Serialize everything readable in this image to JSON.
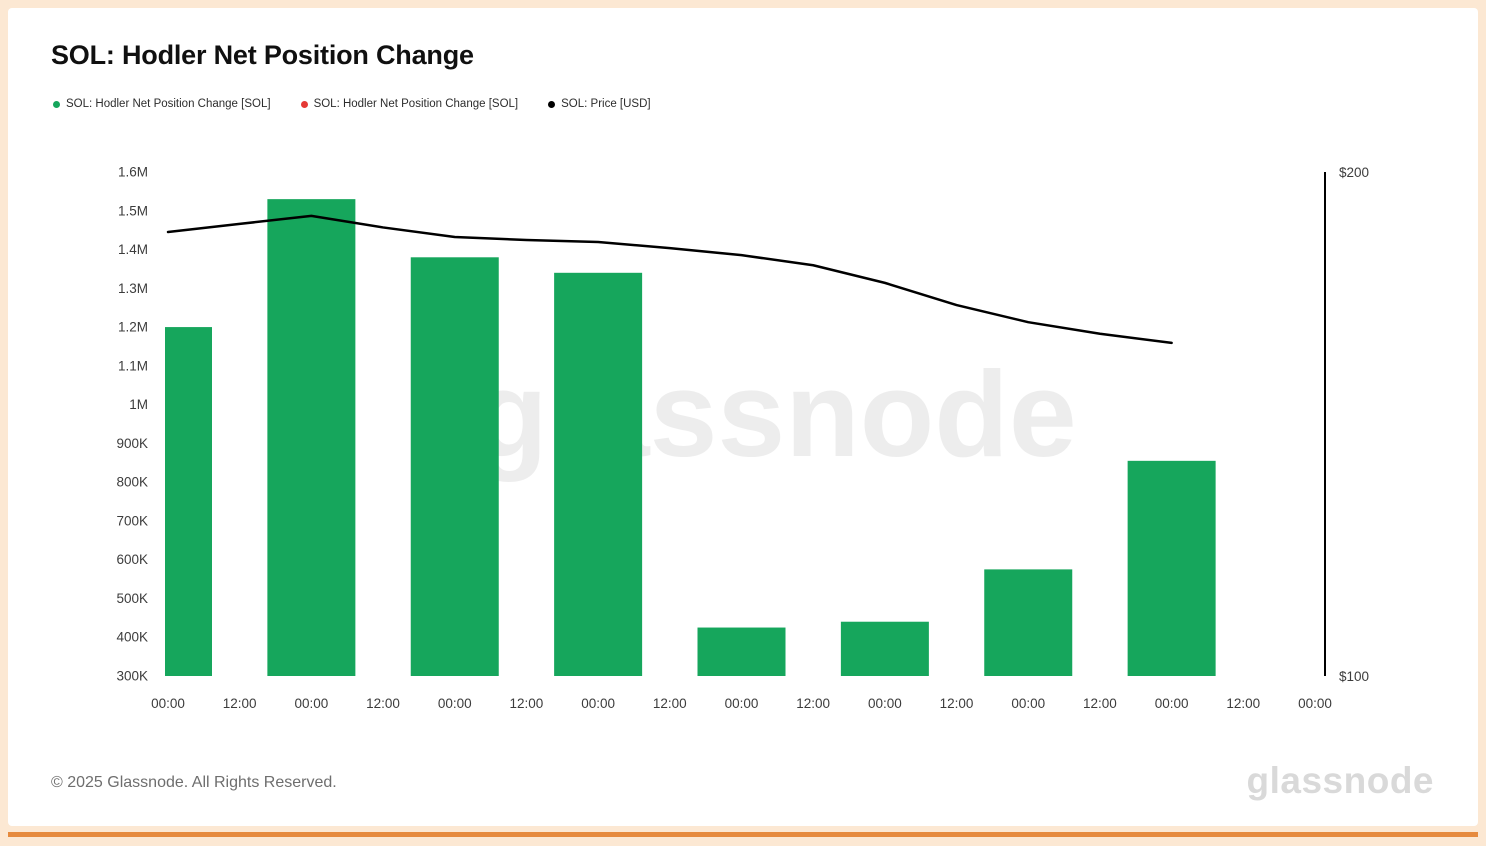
{
  "header": {
    "title": "SOL: Hodler Net Position Change"
  },
  "legend": {
    "items": [
      {
        "label": "SOL: Hodler Net Position Change [SOL]",
        "color": "#16a65c"
      },
      {
        "label": "SOL: Hodler Net Position Change [SOL]",
        "color": "#e53935"
      },
      {
        "label": "SOL: Price [USD]",
        "color": "#000000"
      }
    ]
  },
  "footer": {
    "copyright": "© 2025 Glassnode. All Rights Reserved.",
    "logo": "glassnode"
  },
  "chart_data": {
    "type": "combo",
    "title": "SOL: Hodler Net Position Change",
    "watermark": "glassnode",
    "x_tick_labels": [
      "00:00",
      "12:00",
      "00:00",
      "12:00",
      "00:00",
      "12:00",
      "00:00",
      "12:00",
      "00:00",
      "12:00",
      "00:00",
      "12:00",
      "00:00",
      "12:00",
      "00:00",
      "12:00",
      "00:00"
    ],
    "left_axis": {
      "ticks": [
        "1.6M",
        "1.5M",
        "1.4M",
        "1.3M",
        "1.2M",
        "1.1M",
        "1M",
        "900K",
        "800K",
        "700K",
        "600K",
        "500K",
        "400K",
        "300K"
      ],
      "tick_values": [
        1600000,
        1500000,
        1400000,
        1300000,
        1200000,
        1100000,
        1000000,
        900000,
        800000,
        700000,
        600000,
        500000,
        400000,
        300000
      ],
      "ylim": [
        300000,
        1600000
      ]
    },
    "right_axis": {
      "ticks": [
        "$200",
        "$100"
      ],
      "tick_values": [
        200,
        100
      ],
      "ylim": [
        100,
        200
      ]
    },
    "series": [
      {
        "name": "SOL: Hodler Net Position Change [SOL]",
        "type": "bar",
        "color": "#16a65c",
        "axis": "left",
        "points": [
          {
            "x": 0,
            "value": 1200000
          },
          {
            "x": 2,
            "value": 1530000
          },
          {
            "x": 4,
            "value": 1380000
          },
          {
            "x": 6,
            "value": 1340000
          },
          {
            "x": 8,
            "value": 425000
          },
          {
            "x": 10,
            "value": 440000
          },
          {
            "x": 12,
            "value": 575000
          },
          {
            "x": 14,
            "value": 855000
          }
        ]
      },
      {
        "name": "SOL: Hodler Net Position Change [SOL]",
        "type": "bar",
        "color": "#e53935",
        "axis": "left",
        "points": []
      },
      {
        "name": "SOL: Price [USD]",
        "type": "line",
        "color": "#000000",
        "axis": "right",
        "points": [
          {
            "x": 0,
            "value": 188.1
          },
          {
            "x": 1,
            "value": 189.7
          },
          {
            "x": 2,
            "value": 191.3
          },
          {
            "x": 3,
            "value": 189.0
          },
          {
            "x": 4,
            "value": 187.1
          },
          {
            "x": 5,
            "value": 186.5
          },
          {
            "x": 6,
            "value": 186.1
          },
          {
            "x": 7,
            "value": 184.9
          },
          {
            "x": 8,
            "value": 183.5
          },
          {
            "x": 9,
            "value": 181.5
          },
          {
            "x": 10,
            "value": 178.0
          },
          {
            "x": 11,
            "value": 173.6
          },
          {
            "x": 12,
            "value": 170.2
          },
          {
            "x": 13,
            "value": 167.9
          },
          {
            "x": 14,
            "value": 166.1
          }
        ]
      }
    ]
  }
}
